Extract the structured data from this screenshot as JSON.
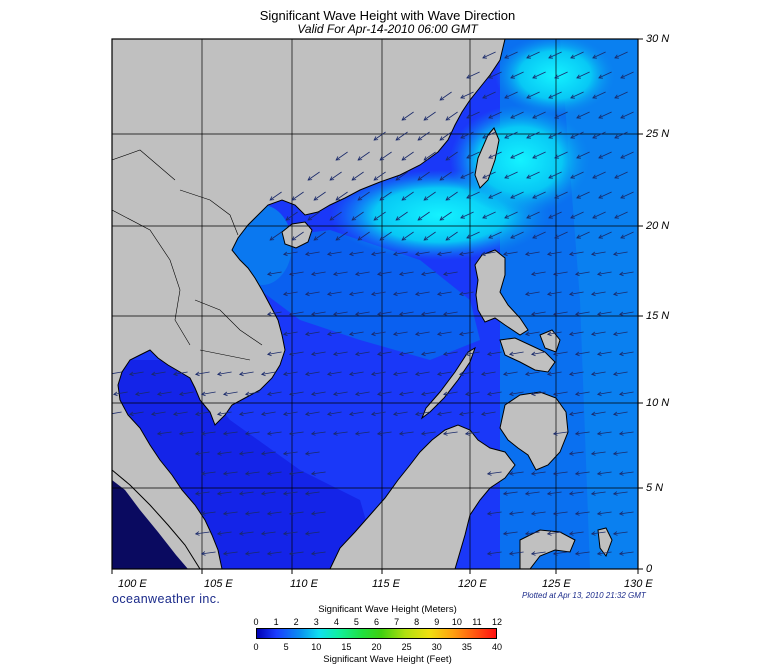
{
  "title": "Significant Wave Height with Wave Direction",
  "subtitle": "Valid For Apr-14-2010 06:00 GMT",
  "lat_labels": [
    "30 N",
    "25 N",
    "20 N",
    "15 N",
    "10 N",
    "5 N",
    "0"
  ],
  "lon_labels": [
    "100 E",
    "105 E",
    "110 E",
    "115 E",
    "120 E",
    "125 E",
    "130 E"
  ],
  "brand": "oceanweather inc.",
  "plotted": "Plotted at Apr 13, 2010 21:32 GMT",
  "legend": {
    "meters_title": "Significant Wave Height (Meters)",
    "feet_title": "Significant Wave Height (Feet)",
    "meters_ticks": [
      "0",
      "1",
      "2",
      "3",
      "4",
      "5",
      "6",
      "7",
      "8",
      "9",
      "10",
      "11",
      "12"
    ],
    "feet_ticks": [
      "0",
      "5",
      "10",
      "15",
      "20",
      "25",
      "30",
      "35",
      "40"
    ]
  },
  "colors": {
    "land": "#c0c0c0",
    "coast": "#000000",
    "sea_low": "#1a33ff",
    "sea_mid": "#0a80f0",
    "sea_high": "#10e8f0",
    "arrow": "#1a2a6a"
  }
}
